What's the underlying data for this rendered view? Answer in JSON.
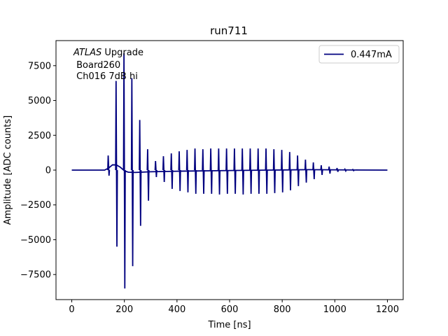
{
  "chart_data": {
    "type": "line",
    "title": "run711",
    "xlabel": "Time [ns]",
    "ylabel": "Amplitude [ADC counts]",
    "xlim": [
      -60,
      1260
    ],
    "ylim": [
      -9300,
      9300
    ],
    "xticks": [
      0,
      200,
      400,
      600,
      800,
      1000,
      1200
    ],
    "yticks": [
      -7500,
      -5000,
      -2500,
      0,
      2500,
      5000,
      7500
    ],
    "grid": false,
    "legend_position": "top-right",
    "annotation": {
      "line1_italic": "ATLAS",
      "line1_rest": " Upgrade",
      "line2": " Board260",
      "line3": " Ch016 7dB hi"
    },
    "series": [
      {
        "name": "0.447mA",
        "color": "#00007f",
        "baseline": [
          [
            0,
            0
          ],
          [
            125,
            0
          ],
          [
            140,
            150
          ],
          [
            155,
            380
          ],
          [
            170,
            370
          ],
          [
            185,
            200
          ],
          [
            200,
            -50
          ],
          [
            215,
            -150
          ],
          [
            240,
            -170
          ],
          [
            300,
            -120
          ],
          [
            400,
            -80
          ],
          [
            600,
            -30
          ],
          [
            800,
            10
          ],
          [
            900,
            30
          ],
          [
            1000,
            20
          ],
          [
            1100,
            5
          ],
          [
            1200,
            0
          ]
        ],
        "spikes": [
          {
            "x": 140,
            "max": 1050,
            "min": -400
          },
          {
            "x": 170,
            "max": 6400,
            "min": -5500
          },
          {
            "x": 200,
            "max": 8400,
            "min": -8500
          },
          {
            "x": 230,
            "max": 6600,
            "min": -6900
          },
          {
            "x": 260,
            "max": 3600,
            "min": -4000
          },
          {
            "x": 290,
            "max": 1500,
            "min": -2200
          },
          {
            "x": 320,
            "max": 650,
            "min": -500
          },
          {
            "x": 350,
            "max": 1000,
            "min": -850
          },
          {
            "x": 380,
            "max": 1200,
            "min": -1350
          },
          {
            "x": 410,
            "max": 1350,
            "min": -1500
          },
          {
            "x": 440,
            "max": 1450,
            "min": -1600
          },
          {
            "x": 470,
            "max": 1550,
            "min": -1700
          },
          {
            "x": 500,
            "max": 1500,
            "min": -1700
          },
          {
            "x": 530,
            "max": 1550,
            "min": -1700
          },
          {
            "x": 560,
            "max": 1550,
            "min": -1750
          },
          {
            "x": 590,
            "max": 1550,
            "min": -1700
          },
          {
            "x": 620,
            "max": 1550,
            "min": -1700
          },
          {
            "x": 650,
            "max": 1550,
            "min": -1750
          },
          {
            "x": 680,
            "max": 1550,
            "min": -1700
          },
          {
            "x": 710,
            "max": 1550,
            "min": -1700
          },
          {
            "x": 740,
            "max": 1550,
            "min": -1700
          },
          {
            "x": 770,
            "max": 1500,
            "min": -1650
          },
          {
            "x": 800,
            "max": 1450,
            "min": -1600
          },
          {
            "x": 830,
            "max": 1300,
            "min": -1450
          },
          {
            "x": 860,
            "max": 1050,
            "min": -1150
          },
          {
            "x": 890,
            "max": 750,
            "min": -900
          },
          {
            "x": 920,
            "max": 550,
            "min": -650
          },
          {
            "x": 950,
            "max": 350,
            "min": -350
          },
          {
            "x": 980,
            "max": 250,
            "min": -250
          },
          {
            "x": 1010,
            "max": 150,
            "min": -120
          },
          {
            "x": 1040,
            "max": 60,
            "min": -60
          },
          {
            "x": 1070,
            "max": 40,
            "min": -40
          }
        ]
      }
    ]
  }
}
